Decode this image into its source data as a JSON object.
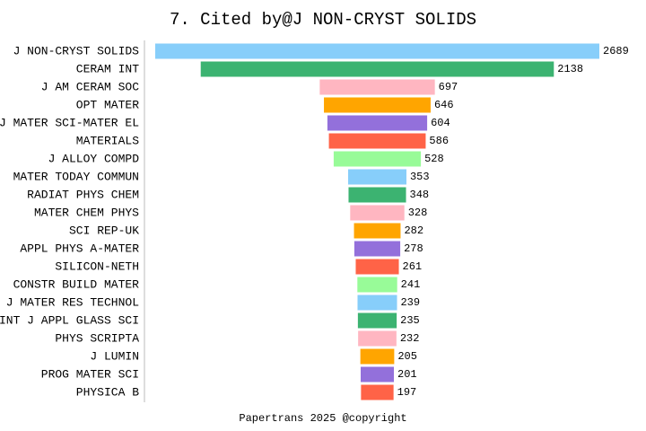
{
  "chart_data": {
    "type": "funnel",
    "title": "7. Cited by@J NON-CRYST SOLIDS",
    "footer": "Papertrans 2025 @copyright",
    "categories": [
      "J NON-CRYST SOLIDS",
      "CERAM INT",
      "J AM CERAM SOC",
      "OPT MATER",
      "J MATER SCI-MATER EL",
      "MATERIALS",
      "J ALLOY COMPD",
      "MATER TODAY COMMUN",
      "RADIAT PHYS CHEM",
      "MATER CHEM PHYS",
      "SCI REP-UK",
      "APPL PHYS A-MATER",
      "SILICON-NETH",
      "CONSTR BUILD MATER",
      "J MATER RES TECHNOL",
      "INT J APPL GLASS SCI",
      "PHYS SCRIPTA",
      "J LUMIN",
      "PROG MATER SCI",
      "PHYSICA B"
    ],
    "values": [
      2689,
      2138,
      697,
      646,
      604,
      586,
      528,
      353,
      348,
      328,
      282,
      278,
      261,
      241,
      239,
      235,
      232,
      205,
      201,
      197
    ],
    "colors": [
      "#87cefa",
      "#3cb371",
      "#ffb6c1",
      "#ffa500",
      "#9370db",
      "#ff6347",
      "#98fb98"
    ]
  }
}
